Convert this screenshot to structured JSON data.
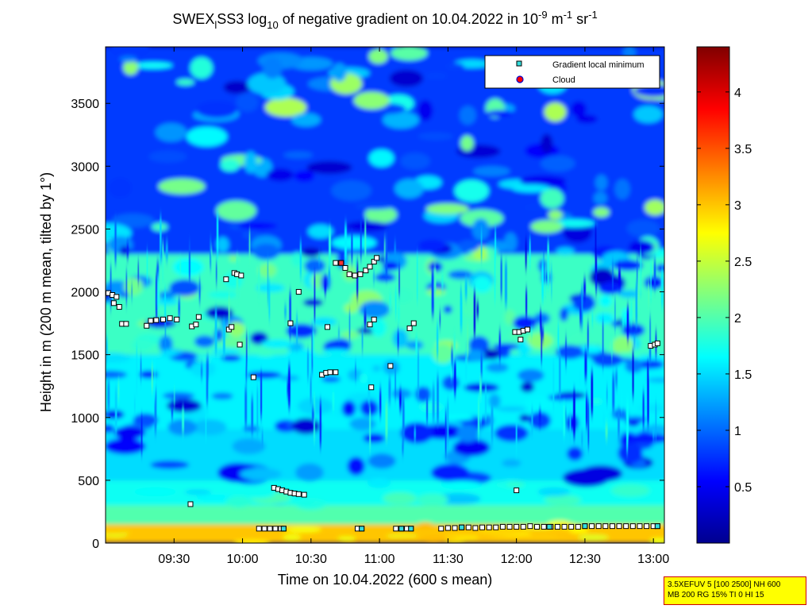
{
  "chart_data": {
    "type": "heatmap",
    "title_parts": {
      "a": "SWEX",
      "a_sub": "l",
      "b": "SS3 log",
      "b_sub": "10",
      "c": " of negative gradient on 10.04.2022 in 10",
      "c_sup": "-9",
      "d": " m",
      "d_sup": "-1",
      "e": " sr",
      "e_sup": "-1"
    },
    "xlabel": "Time on 10.04.2022 (600 s mean)",
    "ylabel": "Height in m (200 m mean, tilted by 1°)",
    "xlim_hours": [
      9.0,
      13.08
    ],
    "ylim": [
      0,
      3950
    ],
    "x_ticks": [
      {
        "value": 9.5,
        "label": "09:30"
      },
      {
        "value": 10.0,
        "label": "10:00"
      },
      {
        "value": 10.5,
        "label": "10:30"
      },
      {
        "value": 11.0,
        "label": "11:00"
      },
      {
        "value": 11.5,
        "label": "11:30"
      },
      {
        "value": 12.0,
        "label": "12:00"
      },
      {
        "value": 12.5,
        "label": "12:30"
      },
      {
        "value": 13.0,
        "label": "13:00"
      }
    ],
    "y_ticks": [
      {
        "value": 0,
        "label": "0"
      },
      {
        "value": 500,
        "label": "500"
      },
      {
        "value": 1000,
        "label": "1000"
      },
      {
        "value": 1500,
        "label": "1500"
      },
      {
        "value": 2000,
        "label": "2000"
      },
      {
        "value": 2500,
        "label": "2500"
      },
      {
        "value": 3000,
        "label": "3000"
      },
      {
        "value": 3500,
        "label": "3500"
      }
    ],
    "colorbar": {
      "range": [
        0,
        4.4
      ],
      "ticks": [
        {
          "value": 0.5,
          "label": "0.5"
        },
        {
          "value": 1.0,
          "label": "1"
        },
        {
          "value": 1.5,
          "label": "1.5"
        },
        {
          "value": 2.0,
          "label": "2"
        },
        {
          "value": 2.5,
          "label": "2.5"
        },
        {
          "value": 3.0,
          "label": "3"
        },
        {
          "value": 3.5,
          "label": "3.5"
        },
        {
          "value": 4.0,
          "label": "4"
        }
      ],
      "colormap": "jet"
    },
    "legend": {
      "position": "top-right",
      "entries": [
        {
          "label": "Gradient local minimum",
          "marker": "cyan-square"
        },
        {
          "label": "Cloud",
          "marker": "red-circle-blue-edge"
        }
      ]
    },
    "layers": [
      {
        "h0": 0,
        "h1": 150,
        "level": 3.0
      },
      {
        "h0": 150,
        "h1": 300,
        "level": 2.0
      },
      {
        "h0": 300,
        "h1": 500,
        "level": 1.7
      },
      {
        "h0": 500,
        "h1": 900,
        "level": 1.5
      },
      {
        "h0": 900,
        "h1": 1500,
        "level": 1.6
      },
      {
        "h0": 1500,
        "h1": 2300,
        "level": 1.9
      },
      {
        "h0": 2300,
        "h1": 3950,
        "level": 0.8
      }
    ],
    "series": [
      {
        "name": "Gradient local minimum",
        "points": [
          [
            9.02,
            1990
          ],
          [
            9.05,
            1975
          ],
          [
            9.08,
            1960
          ],
          [
            9.06,
            1910
          ],
          [
            9.1,
            1880
          ],
          [
            9.12,
            1745
          ],
          [
            9.15,
            1745
          ],
          [
            9.3,
            1730
          ],
          [
            9.33,
            1770
          ],
          [
            9.37,
            1775
          ],
          [
            9.42,
            1780
          ],
          [
            9.47,
            1790
          ],
          [
            9.52,
            1780
          ],
          [
            9.63,
            1725
          ],
          [
            9.66,
            1740
          ],
          [
            9.68,
            1800
          ],
          [
            9.88,
            2100
          ],
          [
            9.9,
            1700
          ],
          [
            9.92,
            1720
          ],
          [
            9.94,
            2150
          ],
          [
            9.96,
            2140
          ],
          [
            9.99,
            2130
          ],
          [
            9.98,
            1580
          ],
          [
            10.08,
            1320
          ],
          [
            10.35,
            1750
          ],
          [
            10.41,
            2000
          ],
          [
            10.58,
            1340
          ],
          [
            10.61,
            1355
          ],
          [
            10.64,
            1360
          ],
          [
            10.68,
            1360
          ],
          [
            10.62,
            1720
          ],
          [
            10.68,
            2230
          ],
          [
            10.72,
            2230
          ],
          [
            10.75,
            2190
          ],
          [
            10.78,
            2140
          ],
          [
            10.82,
            2130
          ],
          [
            10.86,
            2140
          ],
          [
            10.9,
            2170
          ],
          [
            10.93,
            2200
          ],
          [
            10.96,
            2240
          ],
          [
            10.98,
            2270
          ],
          [
            10.93,
            1740
          ],
          [
            10.96,
            1780
          ],
          [
            10.94,
            1240
          ],
          [
            11.08,
            1410
          ],
          [
            11.22,
            1710
          ],
          [
            11.25,
            1750
          ],
          [
            11.99,
            1680
          ],
          [
            12.02,
            1680
          ],
          [
            12.05,
            1690
          ],
          [
            12.03,
            1620
          ],
          [
            12.08,
            1700
          ],
          [
            12.98,
            1570
          ],
          [
            13.01,
            1580
          ],
          [
            13.03,
            1590
          ],
          [
            12.0,
            420
          ],
          [
            9.62,
            310
          ],
          [
            10.23,
            440
          ],
          [
            10.26,
            430
          ],
          [
            10.29,
            420
          ],
          [
            10.32,
            410
          ],
          [
            10.35,
            400
          ],
          [
            10.38,
            395
          ],
          [
            10.41,
            390
          ],
          [
            10.45,
            385
          ],
          [
            10.12,
            115
          ],
          [
            10.16,
            115
          ],
          [
            10.2,
            115
          ],
          [
            10.24,
            115
          ],
          [
            10.28,
            115
          ],
          [
            10.3,
            115
          ],
          [
            10.84,
            115
          ],
          [
            10.87,
            115
          ],
          [
            11.12,
            115
          ],
          [
            11.16,
            115
          ],
          [
            11.2,
            115
          ],
          [
            11.23,
            115
          ],
          [
            11.45,
            115
          ],
          [
            11.5,
            120
          ],
          [
            11.55,
            120
          ],
          [
            11.6,
            125
          ],
          [
            11.65,
            125
          ],
          [
            11.7,
            120
          ],
          [
            11.75,
            125
          ],
          [
            11.8,
            125
          ],
          [
            11.85,
            125
          ],
          [
            11.9,
            130
          ],
          [
            11.95,
            130
          ],
          [
            12.0,
            130
          ],
          [
            12.05,
            130
          ],
          [
            12.1,
            135
          ],
          [
            12.15,
            130
          ],
          [
            12.2,
            130
          ],
          [
            12.25,
            130
          ],
          [
            12.3,
            130
          ],
          [
            12.35,
            130
          ],
          [
            12.4,
            130
          ],
          [
            12.45,
            130
          ],
          [
            12.5,
            135
          ],
          [
            12.55,
            135
          ],
          [
            12.6,
            135
          ],
          [
            12.65,
            135
          ],
          [
            12.7,
            135
          ],
          [
            12.75,
            135
          ],
          [
            12.8,
            135
          ],
          [
            12.85,
            135
          ],
          [
            12.9,
            135
          ],
          [
            12.95,
            135
          ],
          [
            13.0,
            135
          ],
          [
            13.03,
            135
          ]
        ],
        "cyan_highlight": [
          [
            10.3,
            115
          ],
          [
            10.87,
            115
          ],
          [
            11.16,
            115
          ],
          [
            11.23,
            115
          ],
          [
            11.6,
            125
          ],
          [
            12.24,
            130
          ],
          [
            12.5,
            135
          ],
          [
            13.03,
            135
          ]
        ]
      },
      {
        "name": "Cloud",
        "points": [
          [
            10.72,
            2230
          ]
        ]
      }
    ]
  },
  "info_box": {
    "line1": "3.5XEFUV 5 [100 2500] NH 600",
    "line2": "MB 200 RG 15% TI 0 HI 15"
  },
  "legend_labels": {
    "gradient": "Gradient local minimum",
    "cloud": "Cloud"
  }
}
